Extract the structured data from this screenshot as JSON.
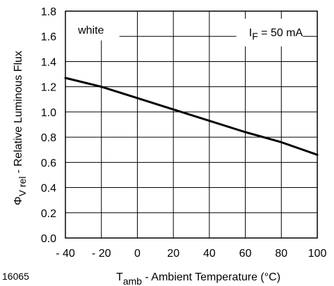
{
  "chart_data": {
    "type": "line",
    "title": "",
    "xlabel": {
      "main": "T",
      "subscript": "amb",
      "suffix": " - Ambient Temperature (°C)"
    },
    "ylabel": {
      "main": "Φ",
      "subscript": "V rel",
      "suffix": " - Relative Luminous Flux"
    },
    "xlim": [
      -40,
      100
    ],
    "ylim": [
      0.0,
      1.8
    ],
    "x_ticks": [
      "- 40",
      "- 20",
      "0",
      "20",
      "40",
      "60",
      "80",
      "100"
    ],
    "x_tick_values": [
      -40,
      -20,
      0,
      20,
      40,
      60,
      80,
      100
    ],
    "y_ticks": [
      "0.0",
      "0.2",
      "0.4",
      "0.6",
      "0.8",
      "1.0",
      "1.2",
      "1.4",
      "1.6",
      "1.8"
    ],
    "y_tick_values": [
      0.0,
      0.2,
      0.4,
      0.6,
      0.8,
      1.0,
      1.2,
      1.4,
      1.6,
      1.8
    ],
    "grid": true,
    "series": [
      {
        "name": "",
        "x": [
          -40,
          -20,
          0,
          20,
          40,
          60,
          80,
          100
        ],
        "y": [
          1.27,
          1.2,
          1.11,
          1.02,
          0.93,
          0.84,
          0.76,
          0.66
        ]
      }
    ],
    "annotations": {
      "left_box": "white",
      "right_box_main": "I",
      "right_box_subscript": "F",
      "right_box_suffix": " = 50 mA"
    },
    "figure_id": "16065"
  }
}
